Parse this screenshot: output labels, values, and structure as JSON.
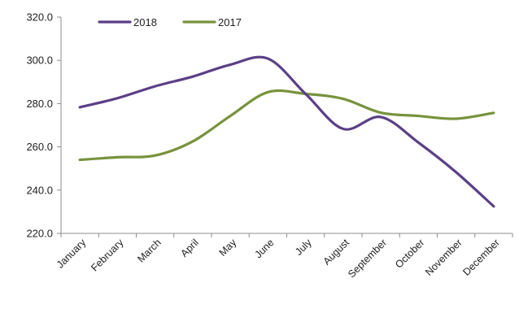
{
  "chart_data": {
    "type": "line",
    "title": "",
    "xlabel": "",
    "ylabel": "",
    "categories": [
      "January",
      "February",
      "March",
      "April",
      "May",
      "June",
      "July",
      "August",
      "September",
      "October",
      "November",
      "December"
    ],
    "ylim": [
      220,
      320
    ],
    "yticks": [
      220,
      240,
      260,
      280,
      300,
      320
    ],
    "ytick_labels": [
      "220.0",
      "240.0",
      "260.0",
      "280.0",
      "300.0",
      "320.0"
    ],
    "grid": false,
    "smooth": true,
    "legend_position": "top",
    "series": [
      {
        "name": "2018",
        "color": "#5b3f86",
        "values": [
          278.3,
          282.5,
          288.0,
          292.5,
          298.0,
          300.8,
          284.5,
          268.3,
          273.8,
          262.0,
          248.3,
          232.5
        ]
      },
      {
        "name": "2017",
        "color": "#77933c",
        "values": [
          254.0,
          255.2,
          256.0,
          262.5,
          274.3,
          285.3,
          284.5,
          282.2,
          275.8,
          274.3,
          273.0,
          275.7
        ]
      }
    ]
  }
}
